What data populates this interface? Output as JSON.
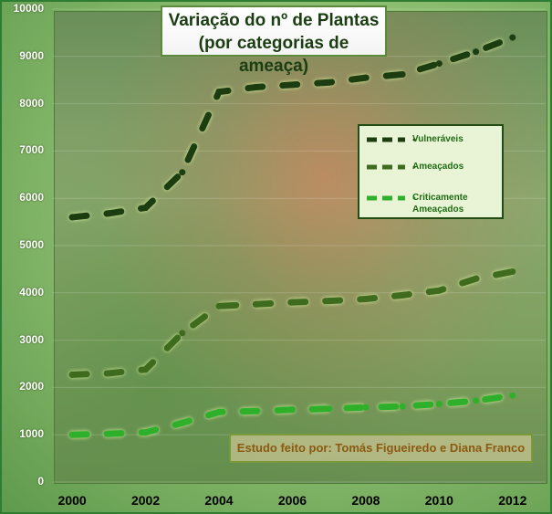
{
  "chart_data": {
    "type": "line",
    "title_line1": "Variação do nº de Plantas",
    "title_line2": "(por categorias de ameaça)",
    "x": [
      2000,
      2001,
      2002,
      2003,
      2004,
      2005,
      2006,
      2007,
      2008,
      2009,
      2010,
      2011,
      2012
    ],
    "x_tick_labels": [
      "2000",
      "2002",
      "2004",
      "2006",
      "2008",
      "2010",
      "2012"
    ],
    "x_tick_values": [
      2000,
      2002,
      2004,
      2006,
      2008,
      2010,
      2012
    ],
    "y_tick_labels": [
      "0",
      "1000",
      "2000",
      "3000",
      "4000",
      "5000",
      "6000",
      "7000",
      "8000",
      "9000",
      "10000"
    ],
    "ylim": [
      0,
      10000
    ],
    "xlim": [
      1999.45,
      2012.9
    ],
    "series": [
      {
        "name": "Vulneráveis",
        "color": "#1c3d10",
        "values": [
          5600,
          5680,
          5800,
          6550,
          8250,
          8350,
          8400,
          8450,
          8550,
          8620,
          8850,
          9100,
          9400
        ]
      },
      {
        "name": "Ameaçados",
        "color": "#3f6b1e",
        "values": [
          2270,
          2300,
          2380,
          3150,
          3720,
          3760,
          3800,
          3830,
          3870,
          3950,
          4050,
          4300,
          4450
        ]
      },
      {
        "name": "Criticamente Ameaçados",
        "color": "#2fb02a",
        "values": [
          1000,
          1020,
          1050,
          1250,
          1480,
          1500,
          1530,
          1550,
          1580,
          1600,
          1650,
          1720,
          1830
        ]
      }
    ],
    "legend_labels": [
      "Vulneráveis",
      "Ameaçados",
      "Criticamente Ameaçados"
    ],
    "annotation": "Estudo feito por: Tomás Figueiredo  e Diana Franco"
  }
}
